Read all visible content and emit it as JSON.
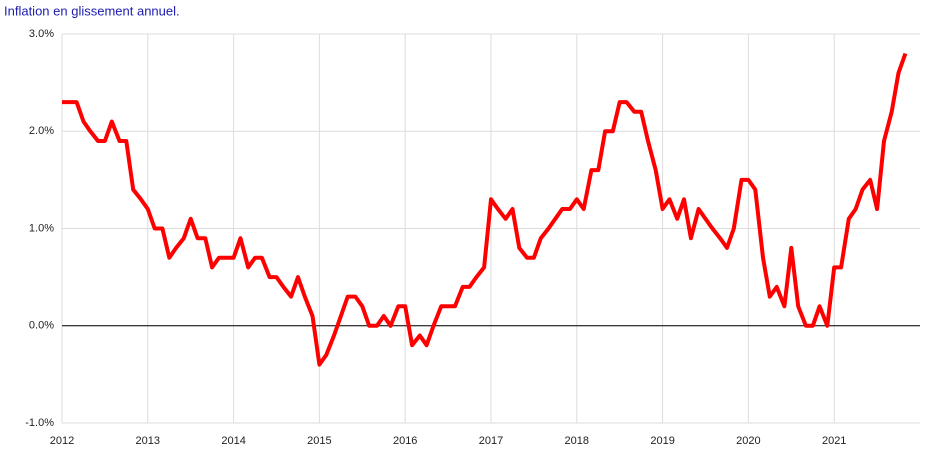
{
  "chart_data": {
    "type": "line",
    "title": "Inflation en glissement annuel.",
    "x": [
      2012,
      2012.08,
      2012.17,
      2012.25,
      2012.33,
      2012.42,
      2012.5,
      2012.58,
      2012.67,
      2012.75,
      2012.83,
      2012.92,
      2013,
      2013.08,
      2013.17,
      2013.25,
      2013.33,
      2013.42,
      2013.5,
      2013.58,
      2013.67,
      2013.75,
      2013.83,
      2013.92,
      2014,
      2014.08,
      2014.17,
      2014.25,
      2014.33,
      2014.42,
      2014.5,
      2014.58,
      2014.67,
      2014.75,
      2014.83,
      2014.92,
      2015,
      2015.08,
      2015.17,
      2015.25,
      2015.33,
      2015.42,
      2015.5,
      2015.58,
      2015.67,
      2015.75,
      2015.83,
      2015.92,
      2016,
      2016.08,
      2016.17,
      2016.25,
      2016.33,
      2016.42,
      2016.5,
      2016.58,
      2016.67,
      2016.75,
      2016.83,
      2016.92,
      2017,
      2017.08,
      2017.17,
      2017.25,
      2017.33,
      2017.42,
      2017.5,
      2017.58,
      2017.67,
      2017.75,
      2017.83,
      2017.92,
      2018,
      2018.08,
      2018.17,
      2018.25,
      2018.33,
      2018.42,
      2018.5,
      2018.58,
      2018.67,
      2018.75,
      2018.83,
      2018.92,
      2019,
      2019.08,
      2019.17,
      2019.25,
      2019.33,
      2019.42,
      2019.5,
      2019.58,
      2019.67,
      2019.75,
      2019.83,
      2019.92,
      2020,
      2020.08,
      2020.17,
      2020.25,
      2020.33,
      2020.42,
      2020.5,
      2020.58,
      2020.67,
      2020.75,
      2020.83,
      2020.92,
      2021,
      2021.08,
      2021.17,
      2021.25,
      2021.33,
      2021.42,
      2021.5,
      2021.58,
      2021.67,
      2021.75,
      2021.83
    ],
    "series": [
      {
        "color": "#ff0000",
        "values": [
          2.3,
          2.3,
          2.3,
          2.1,
          2.0,
          1.9,
          1.9,
          2.1,
          1.9,
          1.9,
          1.4,
          1.3,
          1.2,
          1.0,
          1.0,
          0.7,
          0.8,
          0.9,
          1.1,
          0.9,
          0.9,
          0.6,
          0.7,
          0.7,
          0.7,
          0.9,
          0.6,
          0.7,
          0.7,
          0.5,
          0.5,
          0.4,
          0.3,
          0.5,
          0.3,
          0.1,
          -0.4,
          -0.3,
          -0.1,
          0.1,
          0.3,
          0.3,
          0.2,
          0.0,
          0.0,
          0.1,
          0.0,
          0.2,
          0.2,
          -0.2,
          -0.1,
          -0.2,
          0.0,
          0.2,
          0.2,
          0.2,
          0.4,
          0.4,
          0.5,
          0.6,
          1.3,
          1.2,
          1.1,
          1.2,
          0.8,
          0.7,
          0.7,
          0.9,
          1.0,
          1.1,
          1.2,
          1.2,
          1.3,
          1.2,
          1.6,
          1.6,
          2.0,
          2.0,
          2.3,
          2.3,
          2.2,
          2.2,
          1.9,
          1.6,
          1.2,
          1.3,
          1.1,
          1.3,
          0.9,
          1.2,
          1.1,
          1.0,
          0.9,
          0.8,
          1.0,
          1.5,
          1.5,
          1.4,
          0.7,
          0.3,
          0.4,
          0.2,
          0.8,
          0.2,
          0.0,
          0.0,
          0.2,
          0.0,
          0.6,
          0.6,
          1.1,
          1.2,
          1.4,
          1.5,
          1.2,
          1.9,
          2.2,
          2.6,
          2.8
        ]
      }
    ],
    "xlim": [
      2012,
      2022
    ],
    "xticks": [
      2012,
      2013,
      2014,
      2015,
      2016,
      2017,
      2018,
      2019,
      2020,
      2021
    ],
    "ylim": [
      -1,
      3
    ],
    "yticks": [
      {
        "value": -1,
        "label": "-1.0%"
      },
      {
        "value": 0,
        "label": "0.0%"
      },
      {
        "value": 1,
        "label": "1.0%"
      },
      {
        "value": 2,
        "label": "2.0%"
      },
      {
        "value": 3,
        "label": "3.0%"
      }
    ],
    "grid": true
  }
}
